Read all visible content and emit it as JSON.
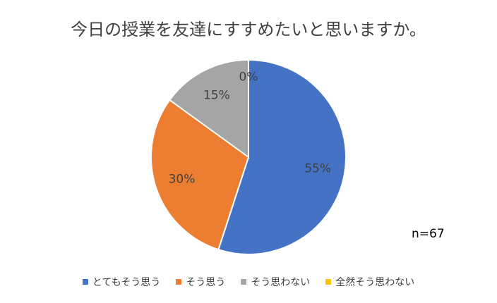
{
  "title": "今日の授業を友達にすすめたいと思いますか。",
  "note": "n=67",
  "chart_data": {
    "type": "pie",
    "title": "今日の授業を友達にすすめたいと思いますか。",
    "categories": [
      "とてもそう思う",
      "そう思う",
      "そう思わない",
      "全然そう思わない"
    ],
    "values": [
      55,
      30,
      15,
      0
    ],
    "labels": [
      "55%",
      "30%",
      "15%",
      "0%"
    ],
    "colors": [
      "#4472C4",
      "#ED7D31",
      "#A5A5A5",
      "#FFC000"
    ],
    "legend": "bottom"
  }
}
